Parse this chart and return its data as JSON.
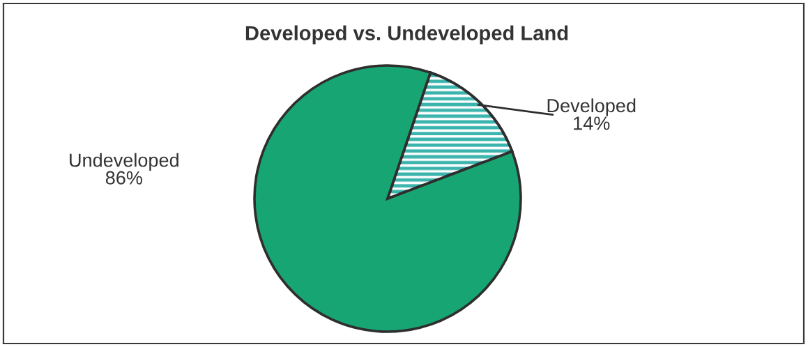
{
  "chart_data": {
    "type": "pie",
    "title": "Developed vs. Undeveloped Land",
    "categories": [
      "Developed",
      "Undeveloped"
    ],
    "values": [
      14,
      86
    ],
    "value_labels": [
      "14%",
      "86%"
    ],
    "colors": [
      "#3bb4ae",
      "#17a673"
    ]
  }
}
